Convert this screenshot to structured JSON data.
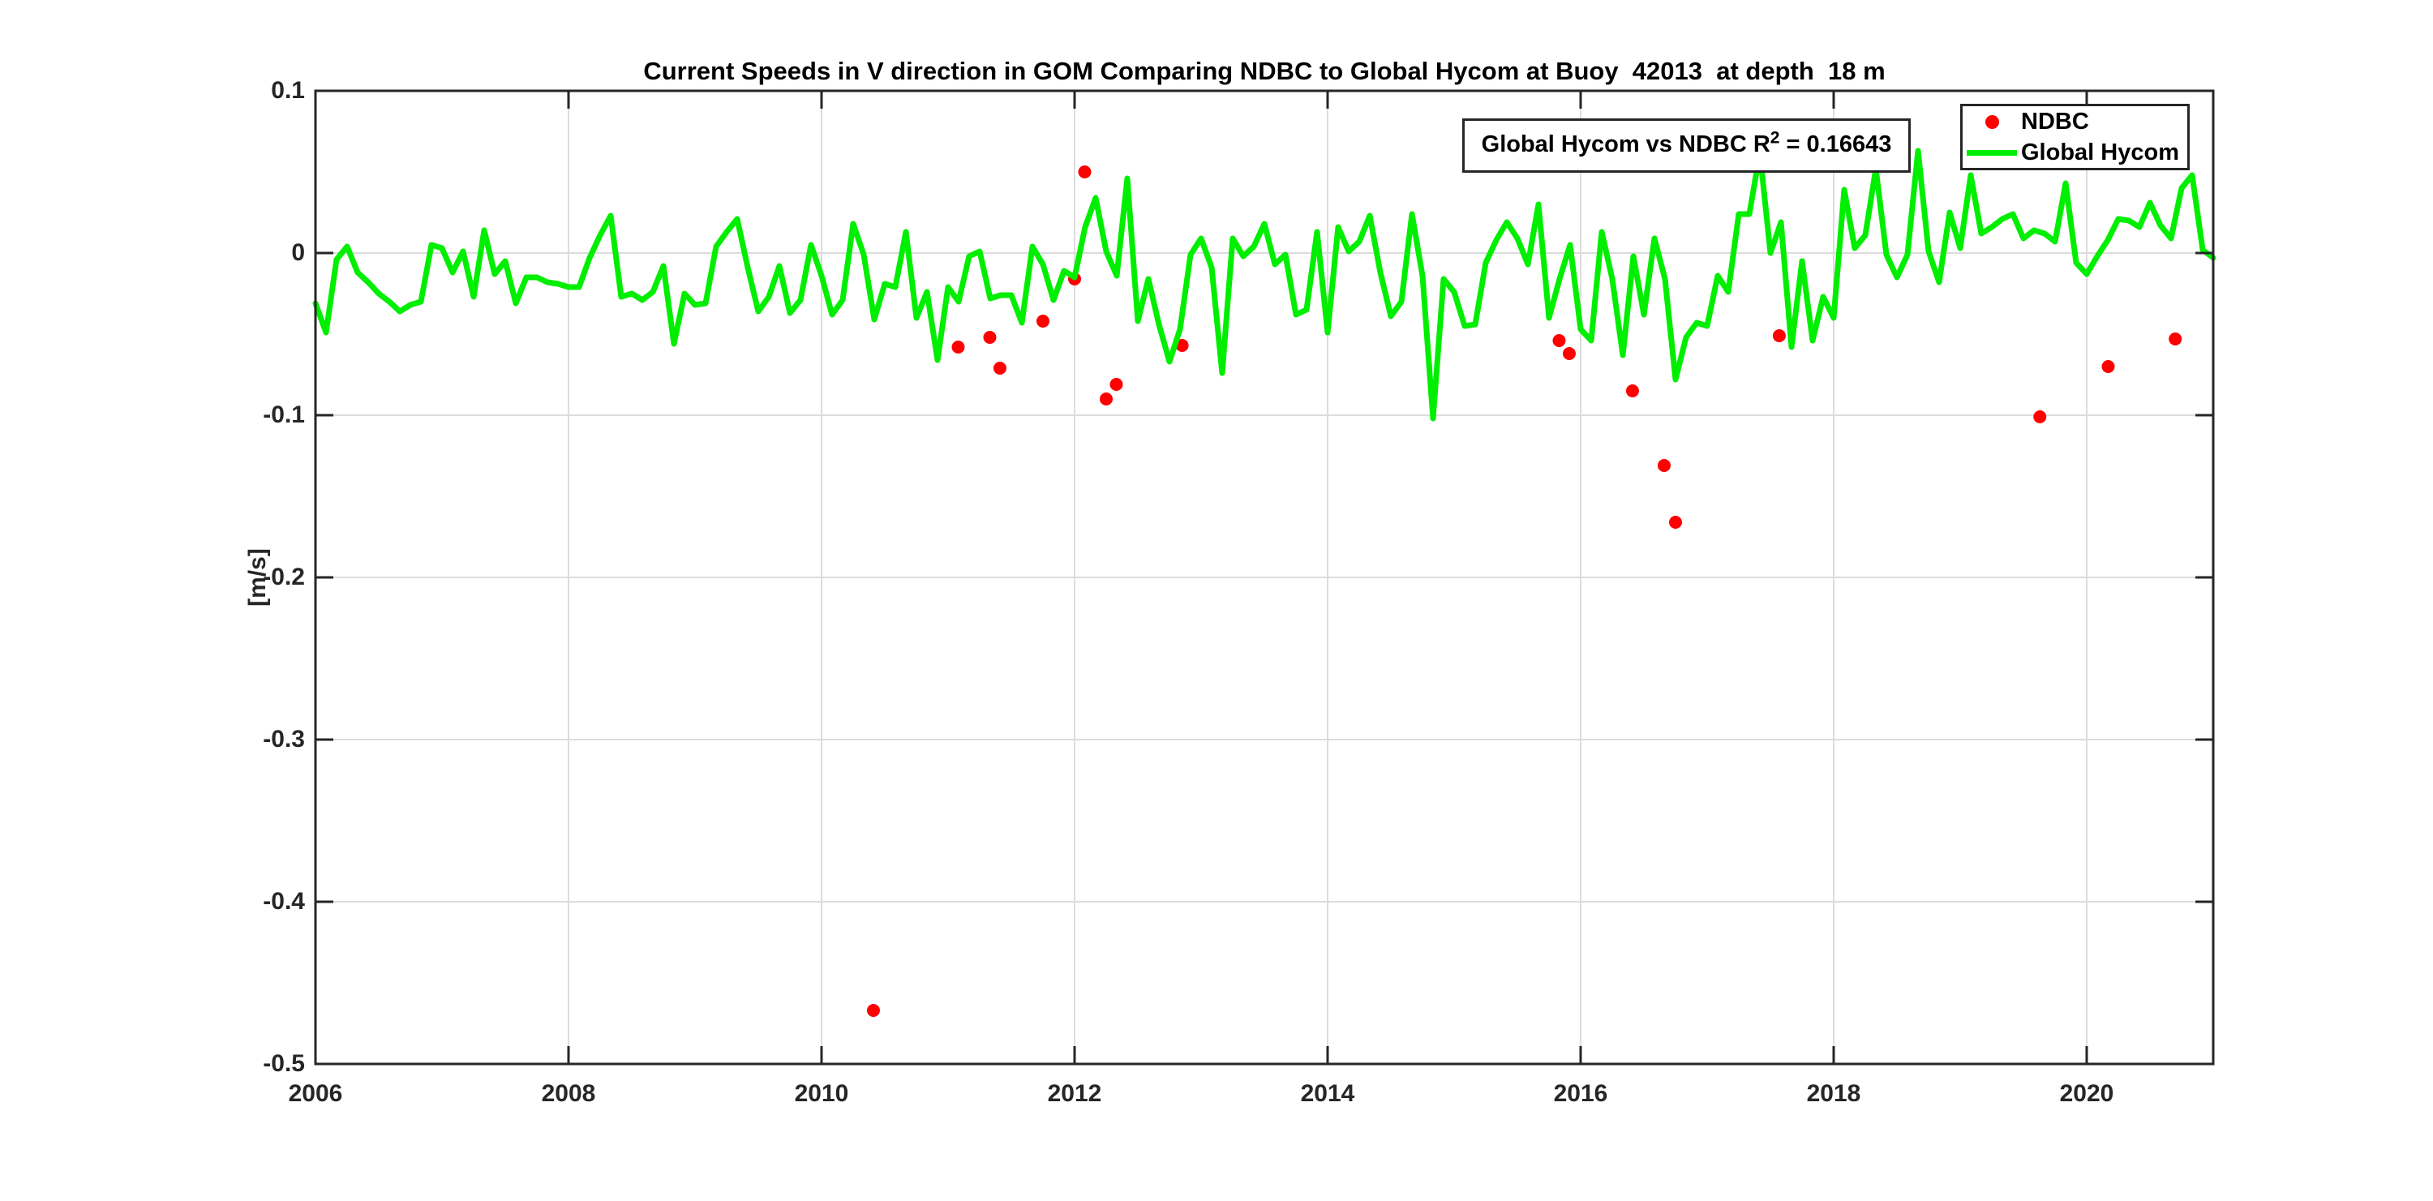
{
  "title": "Current Speeds in V direction in GOM Comparing NDBC to Global Hycom at Buoy  42013  at depth  18 m",
  "annotation": {
    "prefix": "Global Hycom vs NDBC R",
    "sup": "2",
    "suffix": " = 0.16643"
  },
  "legend": {
    "items": [
      {
        "label": "NDBC",
        "marker": "dot",
        "color": "#ff0000"
      },
      {
        "label": "Global Hycom",
        "marker": "line",
        "color": "#00ee00"
      }
    ]
  },
  "axes": {
    "ylabel": "[m/s]",
    "xticks": [
      2006,
      2008,
      2010,
      2012,
      2014,
      2016,
      2018,
      2020
    ],
    "yticks": [
      0.1,
      0,
      -0.1,
      -0.2,
      -0.3,
      -0.4,
      -0.5
    ],
    "ytick_labels": [
      "0.1",
      "0",
      "-0.1",
      "-0.2",
      "-0.3",
      "-0.4",
      "-0.5"
    ],
    "axis_color": "#262626",
    "grid_color": "#dcdcdc"
  },
  "chart_data": {
    "type": "line+scatter",
    "title": "Current Speeds in V direction in GOM Comparing NDBC to Global Hycom at Buoy 42013 at depth 18 m",
    "xlabel": "",
    "ylabel": "[m/s]",
    "xlim": [
      2006,
      2021
    ],
    "ylim": [
      -0.5,
      0.1
    ],
    "grid": true,
    "legend_position": "top-right",
    "annotation": "Global Hycom vs NDBC R^2 = 0.16643",
    "series": [
      {
        "name": "NDBC",
        "type": "scatter",
        "color": "#ff0000",
        "marker_radius": 8,
        "points": [
          [
            2010.41,
            -0.467
          ],
          [
            2011.08,
            -0.058
          ],
          [
            2011.33,
            -0.052
          ],
          [
            2011.41,
            -0.071
          ],
          [
            2011.75,
            -0.042
          ],
          [
            2012.0,
            -0.016
          ],
          [
            2012.08,
            0.05
          ],
          [
            2012.25,
            -0.09
          ],
          [
            2012.33,
            -0.081
          ],
          [
            2012.85,
            -0.057
          ],
          [
            2015.83,
            -0.054
          ],
          [
            2015.91,
            -0.062
          ],
          [
            2016.41,
            -0.085
          ],
          [
            2016.66,
            -0.131
          ],
          [
            2016.75,
            -0.166
          ],
          [
            2017.57,
            -0.051
          ],
          [
            2019.63,
            -0.101
          ],
          [
            2020.17,
            -0.07
          ],
          [
            2020.7,
            -0.053
          ]
        ]
      },
      {
        "name": "Global Hycom",
        "type": "line",
        "color": "#00ee00",
        "line_width": 7,
        "x_start": 2006.0,
        "x_step": 0.08333333,
        "values": [
          -0.031,
          -0.049,
          -0.004,
          0.004,
          -0.012,
          -0.018,
          -0.025,
          -0.03,
          -0.036,
          -0.032,
          -0.03,
          0.005,
          0.003,
          -0.012,
          0.001,
          -0.027,
          0.014,
          -0.013,
          -0.005,
          -0.031,
          -0.015,
          -0.015,
          -0.018,
          -0.019,
          -0.021,
          -0.021,
          -0.003,
          0.011,
          0.023,
          -0.027,
          -0.025,
          -0.029,
          -0.024,
          -0.008,
          -0.056,
          -0.025,
          -0.032,
          -0.031,
          0.004,
          0.013,
          0.021,
          -0.009,
          -0.036,
          -0.027,
          -0.008,
          -0.037,
          -0.029,
          0.005,
          -0.014,
          -0.038,
          -0.029,
          0.018,
          -0.001,
          -0.041,
          -0.019,
          -0.021,
          0.013,
          -0.04,
          -0.024,
          -0.066,
          -0.021,
          -0.03,
          -0.002,
          0.001,
          -0.028,
          -0.026,
          -0.026,
          -0.043,
          0.004,
          -0.007,
          -0.029,
          -0.011,
          -0.015,
          0.016,
          0.034,
          0.001,
          -0.014,
          0.046,
          -0.042,
          -0.016,
          -0.044,
          -0.067,
          -0.047,
          -0.001,
          0.009,
          -0.009,
          -0.074,
          0.009,
          -0.002,
          0.004,
          0.018,
          -0.007,
          -0.001,
          -0.038,
          -0.035,
          0.013,
          -0.049,
          0.016,
          0.001,
          0.007,
          0.023,
          -0.012,
          -0.039,
          -0.03,
          0.024,
          -0.014,
          -0.102,
          -0.016,
          -0.024,
          -0.045,
          -0.044,
          -0.006,
          0.008,
          0.019,
          0.009,
          -0.007,
          0.03,
          -0.04,
          -0.016,
          0.005,
          -0.047,
          -0.054,
          0.013,
          -0.016,
          -0.063,
          -0.002,
          -0.038,
          0.009,
          -0.016,
          -0.078,
          -0.052,
          -0.043,
          -0.045,
          -0.014,
          -0.024,
          0.024,
          0.024,
          0.062,
          0.0,
          0.019,
          -0.058,
          -0.005,
          -0.054,
          -0.027,
          -0.04,
          0.039,
          0.003,
          0.011,
          0.052,
          -0.001,
          -0.015,
          -0.001,
          0.063,
          0.001,
          -0.018,
          0.025,
          0.003,
          0.048,
          0.012,
          0.016,
          0.021,
          0.024,
          0.009,
          0.014,
          0.012,
          0.007,
          0.043,
          -0.006,
          -0.013,
          -0.002,
          0.008,
          0.021,
          0.02,
          0.016,
          0.031,
          0.017,
          0.009,
          0.04,
          0.048,
          0.002,
          -0.003
        ]
      }
    ]
  }
}
